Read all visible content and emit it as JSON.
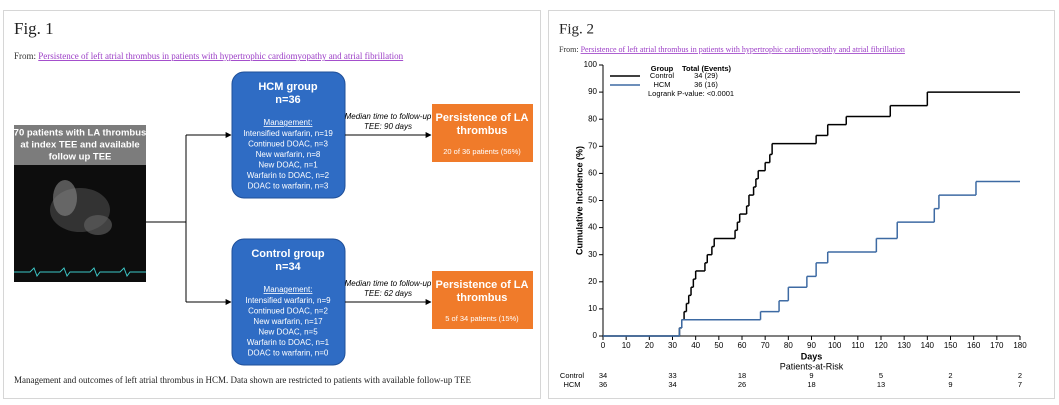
{
  "fig1": {
    "label": "Fig. 1",
    "from": "From:",
    "link": "Persistence of left atrial thrombus in patients with hypertrophic cardiomyopathy and atrial fibrillation",
    "source_box": [
      "70 patients with LA thrombus",
      "at index TEE and available",
      "follow up TEE"
    ],
    "groups": [
      {
        "title": "HCM group",
        "n": "n=36",
        "management": "Management:",
        "items": [
          "Intensified warfarin, n=19",
          "Continued DOAC, n=3",
          "New warfarin, n=8",
          "New DOAC, n=1",
          "Warfarin to DOAC, n=2",
          "DOAC to warfarin, n=3"
        ],
        "followup": [
          "Median time to follow-up",
          "TEE: 90 days"
        ],
        "outcome_title": [
          "Persistence of LA",
          "thrombus"
        ],
        "outcome": "20 of 36 patients (56%)"
      },
      {
        "title": "Control group",
        "n": "n=34",
        "management": "Management:",
        "items": [
          "Intensified warfarin, n=9",
          "Continued DOAC, n=2",
          "New warfarin, n=17",
          "New DOAC, n=5",
          "Warfarin to DOAC, n=1",
          "DOAC to warfarin, n=0"
        ],
        "followup": [
          "Median time to follow-up",
          "TEE: 62 days"
        ],
        "outcome_title": [
          "Persistence of LA",
          "thrombus"
        ],
        "outcome": "5 of 34 patients (15%)"
      }
    ],
    "caption": "Management and outcomes of left atrial thrombus in HCM. Data shown are restricted to patients with available follow-up TEE"
  },
  "fig2": {
    "label": "Fig. 2",
    "from": "From:",
    "link": "Persistence of left atrial thrombus in patients with hypertrophic cardiomyopathy and atrial fibrillation"
  },
  "chart_data": {
    "type": "step",
    "xlabel": "Days",
    "ylabel": "Cumulative Incidence (%)",
    "xlim": [
      0,
      180
    ],
    "ylim": [
      0,
      100
    ],
    "xticks": [
      0,
      10,
      20,
      30,
      40,
      50,
      60,
      70,
      80,
      90,
      100,
      110,
      120,
      130,
      140,
      150,
      160,
      170,
      180
    ],
    "yticks": [
      0,
      10,
      20,
      30,
      40,
      50,
      60,
      70,
      80,
      90,
      100
    ],
    "legend_header": [
      "Group",
      "Total (Events)"
    ],
    "annotation": "Logrank P-value: <0.0001",
    "at_risk_title": "Patients-at-Risk",
    "at_risk_x": [
      0,
      30,
      60,
      90,
      120,
      150,
      180
    ],
    "series": [
      {
        "name": "Control",
        "color": "#000000",
        "total_events": "34 (29)",
        "x": [
          0,
          33,
          34,
          35,
          36,
          37,
          38,
          39,
          40,
          44,
          45,
          47,
          48,
          57,
          58,
          59,
          62,
          63,
          65,
          66,
          67,
          70,
          72,
          73,
          92,
          97,
          105,
          124,
          140
        ],
        "values": [
          0,
          3,
          6,
          9,
          12,
          15,
          18,
          21,
          24,
          27,
          30,
          33,
          36,
          39,
          42,
          45,
          48,
          52,
          55,
          58,
          61,
          64,
          67,
          71,
          74,
          78,
          81,
          85,
          90
        ],
        "at_risk": [
          34,
          33,
          18,
          9,
          5,
          2,
          2
        ]
      },
      {
        "name": "HCM",
        "color": "#3d6aa3",
        "total_events": "36 (16)",
        "x": [
          0,
          33,
          34,
          68,
          76,
          80,
          88,
          92,
          97,
          118,
          127,
          143,
          145,
          161
        ],
        "values": [
          0,
          3,
          6,
          9,
          13,
          18,
          22,
          27,
          31,
          36,
          42,
          47,
          52,
          57
        ],
        "at_risk": [
          36,
          34,
          26,
          18,
          13,
          9,
          7
        ]
      }
    ]
  }
}
